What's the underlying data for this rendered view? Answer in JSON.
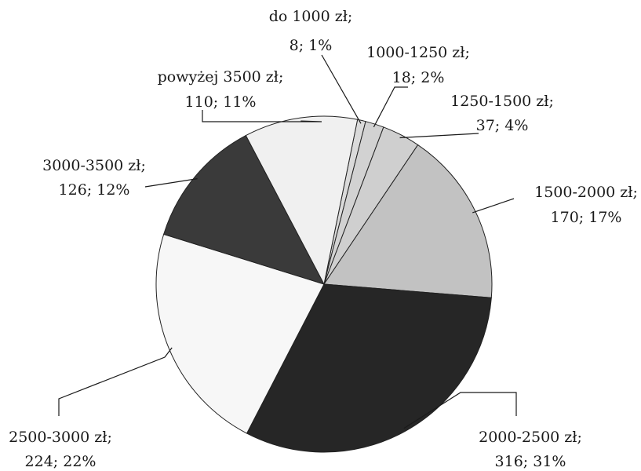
{
  "chart_data": {
    "type": "pie",
    "title": "",
    "start_angle_deg": 78.5,
    "direction": "clockwise",
    "slices": [
      {
        "label": "do 1000 zł;",
        "value": 8,
        "percent": "1%",
        "value_text": "8; 1%",
        "fill": "#dadada"
      },
      {
        "label": "1000-1250 zł;",
        "value": 18,
        "percent": "2%",
        "value_text": "18; 2%",
        "fill": "#d2d2d2"
      },
      {
        "label": "1250-1500 zł;",
        "value": 37,
        "percent": "4%",
        "value_text": "37; 4%",
        "fill": "#cfcfcf"
      },
      {
        "label": "1500-2000 zł;",
        "value": 170,
        "percent": "17%",
        "value_text": "170; 17%",
        "fill": "#c2c2c2"
      },
      {
        "label": "2000-2500 zł;",
        "value": 316,
        "percent": "31%",
        "value_text": "316; 31%",
        "fill": "#262626"
      },
      {
        "label": "2500-3000 zł;",
        "value": 224,
        "percent": "22%",
        "value_text": "224; 22%",
        "fill": "#f7f7f7"
      },
      {
        "label": "3000-3500 zł;",
        "value": 126,
        "percent": "12%",
        "value_text": "126; 12%",
        "fill": "#3a3a3a"
      },
      {
        "label": "powyżej 3500 zł;",
        "value": 110,
        "percent": "11%",
        "value_text": "110; 11%",
        "fill": "#f0f0f0"
      }
    ]
  }
}
